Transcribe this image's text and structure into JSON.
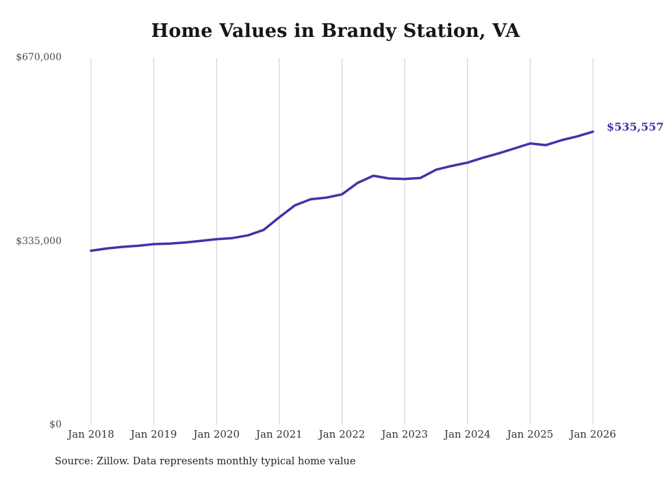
{
  "title": "Home Values in Brandy Station, VA",
  "source_note": "Source: Zillow. Data represents monthly typical home value",
  "end_label": "$535,557",
  "colors": {
    "line": "#3e35a8",
    "grid": "#cccccc",
    "title_text": "#161616",
    "axis_text": "#4a4a4a"
  },
  "chart_data": {
    "type": "line",
    "title": "Home Values in Brandy Station, VA",
    "series_name": "Typical home value",
    "xlabel": "",
    "ylabel": "",
    "ylim": [
      0,
      670000
    ],
    "grid": "vertical",
    "legend": "none",
    "y_tick_labels": [
      "$0",
      "$335,000",
      "$670,000"
    ],
    "x_tick_labels": [
      "Jan 2018",
      "Jan 2019",
      "Jan 2020",
      "Jan 2021",
      "Jan 2022",
      "Jan 2023",
      "Jan 2024",
      "Jan 2025",
      "Jan 2026"
    ],
    "x": [
      "Jan 2018",
      "Apr 2018",
      "Jul 2018",
      "Oct 2018",
      "Jan 2019",
      "Apr 2019",
      "Jul 2019",
      "Oct 2019",
      "Jan 2020",
      "Apr 2020",
      "Jul 2020",
      "Oct 2020",
      "Jan 2021",
      "Apr 2021",
      "Jul 2021",
      "Oct 2021",
      "Jan 2022",
      "Apr 2022",
      "Jul 2022",
      "Oct 2022",
      "Jan 2023",
      "Apr 2023",
      "Jul 2023",
      "Oct 2023",
      "Jan 2024",
      "Apr 2024",
      "Jul 2024",
      "Oct 2024",
      "Jan 2025",
      "Apr 2025",
      "Jul 2025",
      "Oct 2025",
      "Jan 2026"
    ],
    "values": [
      318000,
      322000,
      325000,
      327000,
      330000,
      331000,
      333000,
      336000,
      339000,
      341000,
      346000,
      356000,
      379000,
      401000,
      412000,
      415000,
      421000,
      442000,
      455000,
      450000,
      449000,
      451000,
      466000,
      473000,
      479000,
      488000,
      496000,
      505000,
      514000,
      511000,
      520000,
      527000,
      535557
    ],
    "final_value": 535557,
    "final_value_label": "$535,557"
  }
}
